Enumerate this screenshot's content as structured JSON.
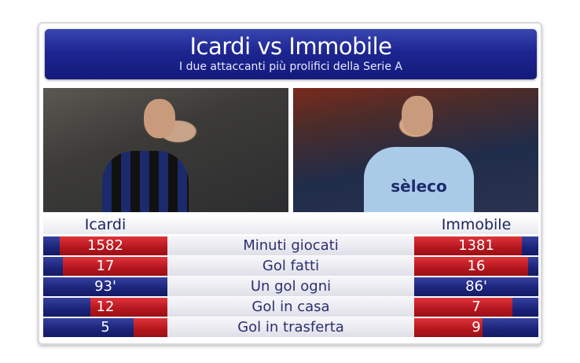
{
  "header": {
    "title": "Icardi vs Immobile",
    "subtitle": "I due attaccanti più prolifici della Serie A"
  },
  "photos": {
    "right_jersey_text": "sèleco"
  },
  "players": {
    "left": "Icardi",
    "right": "Immobile"
  },
  "colors": {
    "header_blue": "#1d2591",
    "bar_red": "#b3161d",
    "bar_blue": "#1a2378"
  },
  "stats": [
    {
      "label": "Minuti giocati",
      "left": "1582",
      "right": "1381",
      "left_fill": 0.87,
      "right_fill": 0.87
    },
    {
      "label": "Gol fatti",
      "left": "17",
      "right": "16",
      "left_fill": 0.84,
      "right_fill": 0.92
    },
    {
      "label": "Un gol ogni",
      "left": "93'",
      "right": "86'",
      "left_fill": 0,
      "right_fill": 0
    },
    {
      "label": "Gol in casa",
      "left": "12",
      "right": "7",
      "left_fill": 0.62,
      "right_fill": 0.79
    },
    {
      "label": "Gol in trasferta",
      "left": "5",
      "right": "9",
      "left_fill": 0.27,
      "right_fill": 0.55
    }
  ]
}
